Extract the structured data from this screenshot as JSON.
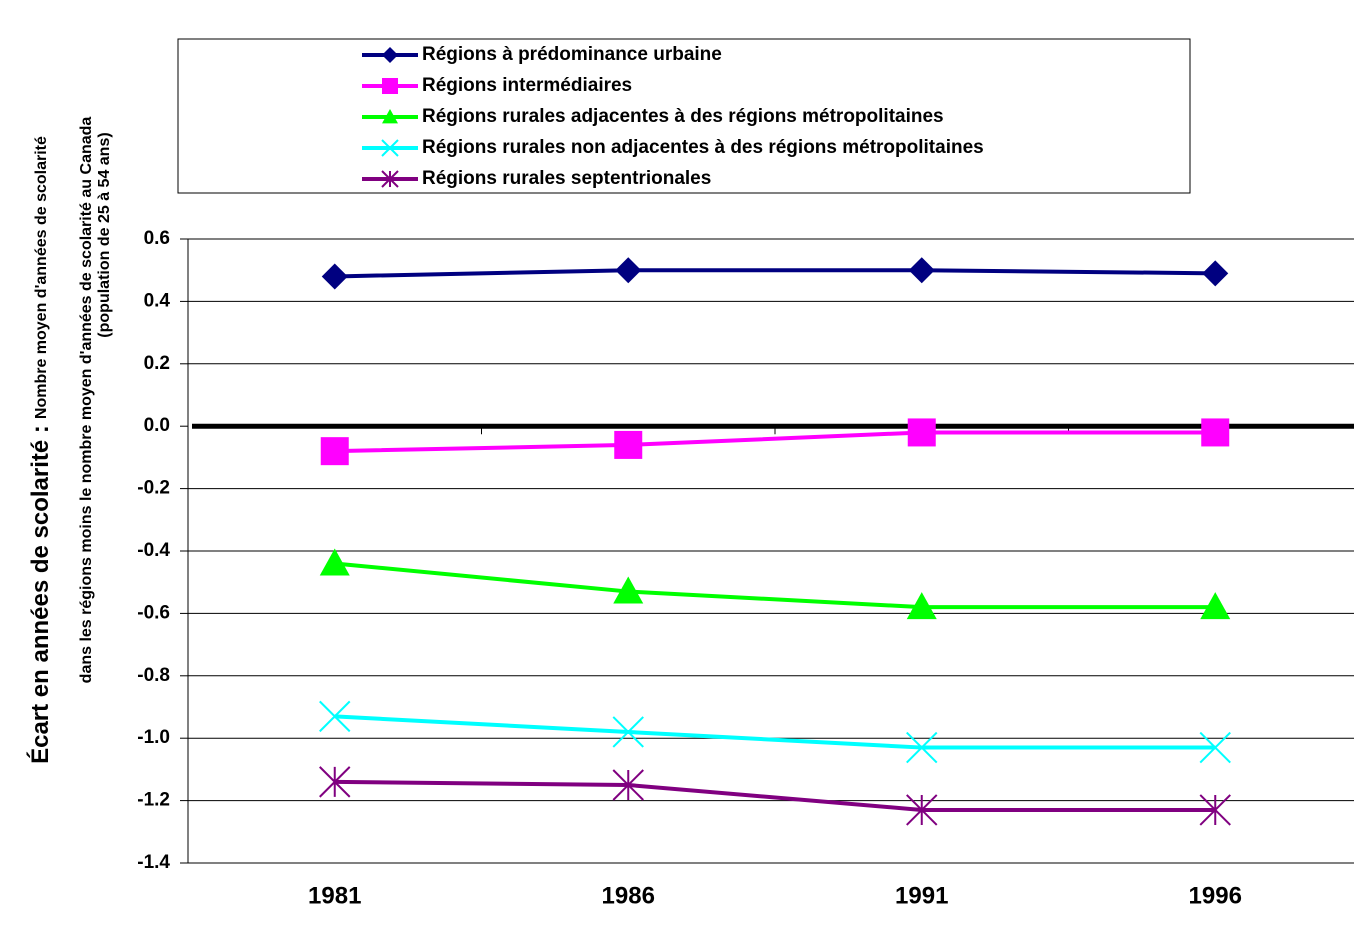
{
  "chart_data": {
    "type": "line",
    "ylabel": {
      "main": "Écart en années de scolarité :",
      "lines": [
        "Nombre moyen d'années de scolarité",
        "dans les régions moins le nombre moyen d'années de scolarité au Canada",
        "(population de 25 à 54 ans)"
      ]
    },
    "categories": [
      "1981",
      "1986",
      "1991",
      "1996"
    ],
    "series": [
      {
        "name": "Régions à prédominance urbaine",
        "color": "#000080",
        "marker": "diamond",
        "values": [
          0.48,
          0.5,
          0.5,
          0.49
        ]
      },
      {
        "name": "Régions intermédiaires",
        "color": "#ff00ff",
        "marker": "square",
        "values": [
          -0.08,
          -0.06,
          -0.02,
          -0.02
        ]
      },
      {
        "name": "Régions rurales adjacentes à des régions métropolitaines",
        "color": "#00ff00",
        "marker": "triangle",
        "values": [
          -0.44,
          -0.53,
          -0.58,
          -0.58
        ]
      },
      {
        "name": "Régions rurales non adjacentes à des régions métropolitaines",
        "color": "#00ffff",
        "marker": "x",
        "values": [
          -0.93,
          -0.98,
          -1.03,
          -1.03
        ]
      },
      {
        "name": "Régions rurales septentrionales",
        "color": "#800080",
        "marker": "star",
        "values": [
          -1.14,
          -1.15,
          -1.23,
          -1.23
        ]
      }
    ],
    "ylim": [
      -1.4,
      0.6
    ],
    "yticks": [
      0.6,
      0.4,
      0.2,
      {
        "value": 0,
        "label": "0.0"
      },
      -0.2,
      -0.4,
      -0.6,
      -0.8,
      {
        "value": -1,
        "label": "-1.0"
      },
      -1.2,
      -1.4
    ],
    "grid": true
  }
}
